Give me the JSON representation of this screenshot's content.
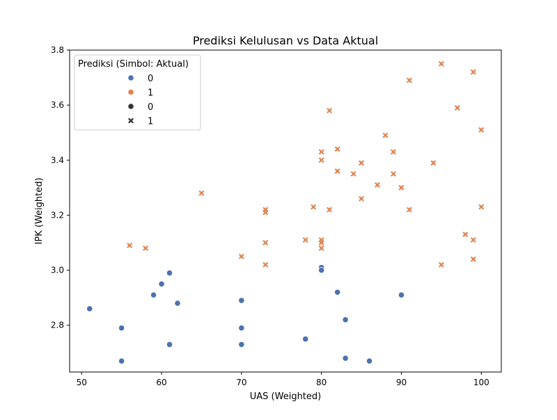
{
  "colors": {
    "class_0": "#4c72b0",
    "class_1": "#dd8452",
    "legend_marker": "#333333",
    "axis": "#000000",
    "legend_border": "#cccccc"
  },
  "chart_data": {
    "type": "scatter",
    "title": "Prediksi Kelulusan vs Data Aktual",
    "xlabel": "UAS (Weighted)",
    "ylabel": "IPK (Weighted)",
    "xlim": [
      48.5,
      102.5
    ],
    "ylim": [
      2.63,
      3.8
    ],
    "xticks": [
      "50",
      "60",
      "70",
      "80",
      "90",
      "100"
    ],
    "xtick_values": [
      50,
      60,
      70,
      80,
      90,
      100
    ],
    "yticks": [
      "2.8",
      "3.0",
      "3.2",
      "3.4",
      "3.6",
      "3.8"
    ],
    "ytick_values": [
      2.8,
      3.0,
      3.2,
      3.4,
      3.6,
      3.8
    ],
    "grid": false,
    "legend": {
      "title": "Prediksi (Simbol: Aktual)",
      "placement": "top-left",
      "entries": [
        {
          "label": "0",
          "marker": "circle",
          "color_key": "class_0"
        },
        {
          "label": "1",
          "marker": "circle",
          "color_key": "class_1"
        },
        {
          "label": "0",
          "marker": "circle",
          "color_key": "legend_marker"
        },
        {
          "label": "1",
          "marker": "x",
          "color_key": "legend_marker"
        }
      ]
    },
    "series": [
      {
        "prediksi": 0,
        "aktual": 0,
        "color_key": "class_0",
        "marker": "circle",
        "points": [
          [
            51,
            2.86
          ],
          [
            55,
            2.79
          ],
          [
            55,
            2.67
          ],
          [
            59,
            2.91
          ],
          [
            60,
            2.95
          ],
          [
            61,
            2.99
          ],
          [
            61,
            2.73
          ],
          [
            62,
            2.88
          ],
          [
            70,
            2.89
          ],
          [
            70,
            2.79
          ],
          [
            70,
            2.73
          ],
          [
            78,
            2.75
          ],
          [
            80,
            3.01
          ],
          [
            80,
            3.0
          ],
          [
            82,
            2.92
          ],
          [
            83,
            2.82
          ],
          [
            83,
            2.68
          ],
          [
            86,
            2.67
          ],
          [
            90,
            2.91
          ]
        ]
      },
      {
        "prediksi": 1,
        "aktual": 1,
        "color_key": "class_1",
        "marker": "x",
        "points": [
          [
            56,
            3.09
          ],
          [
            58,
            3.08
          ],
          [
            65,
            3.28
          ],
          [
            70,
            3.05
          ],
          [
            73,
            3.21
          ],
          [
            73,
            3.22
          ],
          [
            73,
            3.1
          ],
          [
            73,
            3.02
          ],
          [
            78,
            3.11
          ],
          [
            79,
            3.23
          ],
          [
            80,
            3.11
          ],
          [
            80,
            3.1
          ],
          [
            80,
            3.08
          ],
          [
            80,
            3.43
          ],
          [
            80,
            3.4
          ],
          [
            81,
            3.58
          ],
          [
            81,
            3.22
          ],
          [
            82,
            3.44
          ],
          [
            82,
            3.36
          ],
          [
            84,
            3.35
          ],
          [
            85,
            3.39
          ],
          [
            85,
            3.26
          ],
          [
            87,
            3.31
          ],
          [
            88,
            3.49
          ],
          [
            89,
            3.43
          ],
          [
            89,
            3.35
          ],
          [
            90,
            3.3
          ],
          [
            91,
            3.69
          ],
          [
            91,
            3.22
          ],
          [
            94,
            3.39
          ],
          [
            95,
            3.75
          ],
          [
            95,
            3.02
          ],
          [
            97,
            3.59
          ],
          [
            98,
            3.13
          ],
          [
            99,
            3.72
          ],
          [
            99,
            3.11
          ],
          [
            99,
            3.04
          ],
          [
            100,
            3.51
          ],
          [
            100,
            3.23
          ]
        ]
      }
    ]
  }
}
